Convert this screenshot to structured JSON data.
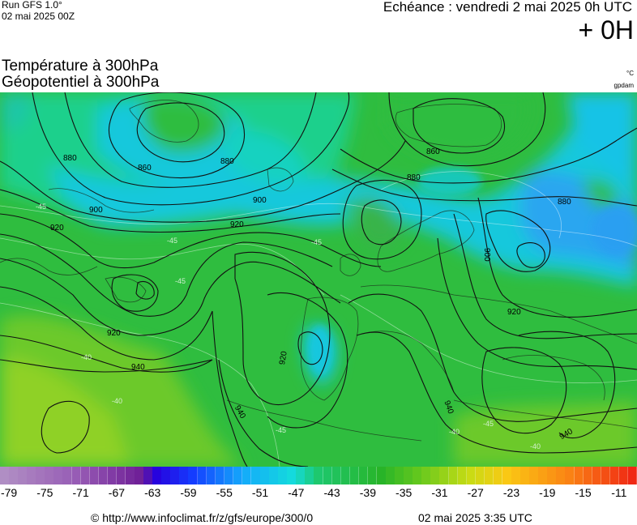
{
  "header": {
    "run_label": "Run GFS 1.0°",
    "run_date": "02 mai 2025 00Z",
    "echeance": "Echéance : vendredi 2 mai 2025 0h UTC",
    "lead": "+ 0H",
    "title_line1": "Température à 300hPa",
    "title_line2": "Géopotentiel à 300hPa",
    "unit_temp": "°C",
    "unit_geo": "gpdam"
  },
  "map": {
    "contour_labels": [
      {
        "text": "880",
        "id": "c880a"
      },
      {
        "text": "860",
        "id": "c860a"
      },
      {
        "text": "880",
        "id": "c880b"
      },
      {
        "text": "900",
        "id": "c900a"
      },
      {
        "text": "900",
        "id": "c900b"
      },
      {
        "text": "920",
        "id": "c920a"
      },
      {
        "text": "920",
        "id": "c920b"
      },
      {
        "text": "860",
        "id": "c860b"
      },
      {
        "text": "880",
        "id": "c880c"
      },
      {
        "text": "880",
        "id": "c880d"
      },
      {
        "text": "900",
        "id": "c900c"
      },
      {
        "text": "920",
        "id": "c920c"
      },
      {
        "text": "920",
        "id": "c920d"
      },
      {
        "text": "940",
        "id": "c940a"
      },
      {
        "text": "920",
        "id": "c920e"
      },
      {
        "text": "940",
        "id": "c940b"
      },
      {
        "text": "940",
        "id": "c940c"
      },
      {
        "text": "940",
        "id": "c940d"
      }
    ],
    "temp_labels": [
      {
        "text": "-45",
        "id": "t1"
      },
      {
        "text": "-45",
        "id": "t2"
      },
      {
        "text": "-45",
        "id": "t3"
      },
      {
        "text": "-45",
        "id": "t4"
      },
      {
        "text": "-40",
        "id": "t5"
      },
      {
        "text": "-40",
        "id": "t6"
      },
      {
        "text": "-45",
        "id": "t7"
      },
      {
        "text": "-40",
        "id": "t8"
      },
      {
        "text": "-40",
        "id": "t9"
      },
      {
        "text": "-45",
        "id": "t10"
      }
    ]
  },
  "legend": {
    "min": -80,
    "max": -9,
    "tick_labels": [
      "-79",
      "-75",
      "-71",
      "-67",
      "-63",
      "-59",
      "-55",
      "-51",
      "-47",
      "-43",
      "-39",
      "-35",
      "-31",
      "-27",
      "-23",
      "-19",
      "-15",
      "-11"
    ]
  },
  "footer": {
    "url": "© http://www.infoclimat.fr/z/gfs/europe/300/0",
    "date": "02 mai 2025  3:35 UTC"
  }
}
